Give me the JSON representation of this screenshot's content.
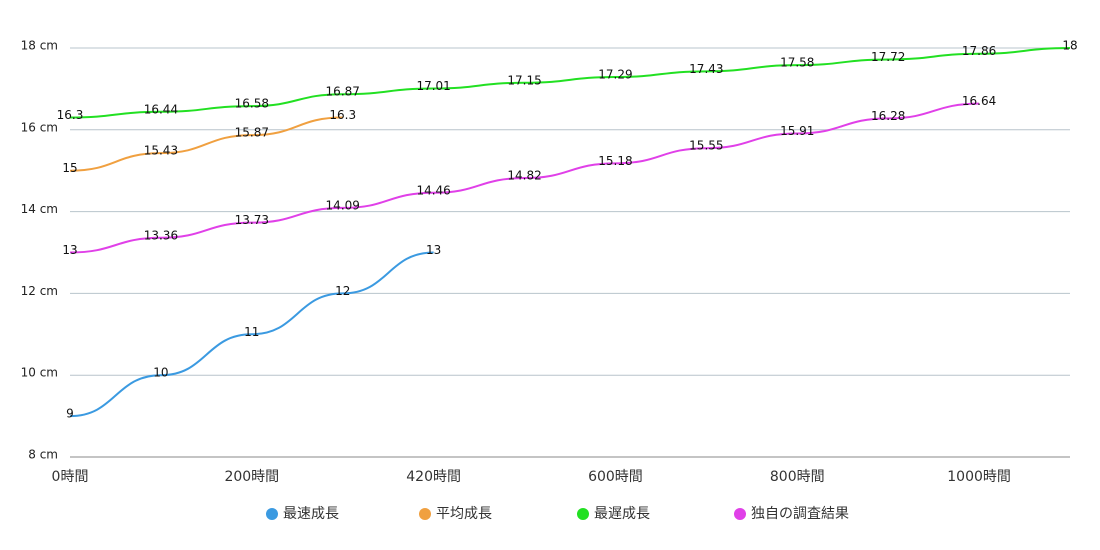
{
  "chart_data": {
    "type": "line",
    "categories": [
      "0時間",
      null,
      "200時間",
      null,
      "420時間",
      null,
      "600時間",
      null,
      "800時間",
      null,
      "1000時間",
      null
    ],
    "series": [
      {
        "name": "最速成長",
        "color": "#3b9ae1",
        "values": [
          9,
          10,
          11,
          12,
          13,
          null,
          null,
          null,
          null,
          null,
          null,
          null
        ]
      },
      {
        "name": "平均成長",
        "color": "#f0a040",
        "values": [
          15,
          15.43,
          15.87,
          16.3,
          null,
          null,
          null,
          null,
          null,
          null,
          null,
          null
        ]
      },
      {
        "name": "最遅成長",
        "color": "#22e022",
        "values": [
          16.3,
          16.44,
          16.58,
          16.87,
          17.01,
          17.15,
          17.29,
          17.43,
          17.58,
          17.72,
          17.86,
          18
        ]
      },
      {
        "name": "独自の調査結果",
        "color": "#e040e8",
        "values": [
          13,
          13.36,
          13.73,
          14.09,
          14.46,
          14.82,
          15.18,
          15.55,
          15.91,
          16.28,
          16.64,
          null
        ]
      }
    ],
    "ylim": [
      8,
      18
    ],
    "yticks": [
      {
        "value": 8,
        "label": "8 cm"
      },
      {
        "value": 10,
        "label": "10 cm"
      },
      {
        "value": 12,
        "label": "12 cm"
      },
      {
        "value": 14,
        "label": "14 cm"
      },
      {
        "value": 16,
        "label": "16 cm"
      },
      {
        "value": 18,
        "label": "18 cm"
      }
    ],
    "grid": true,
    "legend": "bottom"
  }
}
